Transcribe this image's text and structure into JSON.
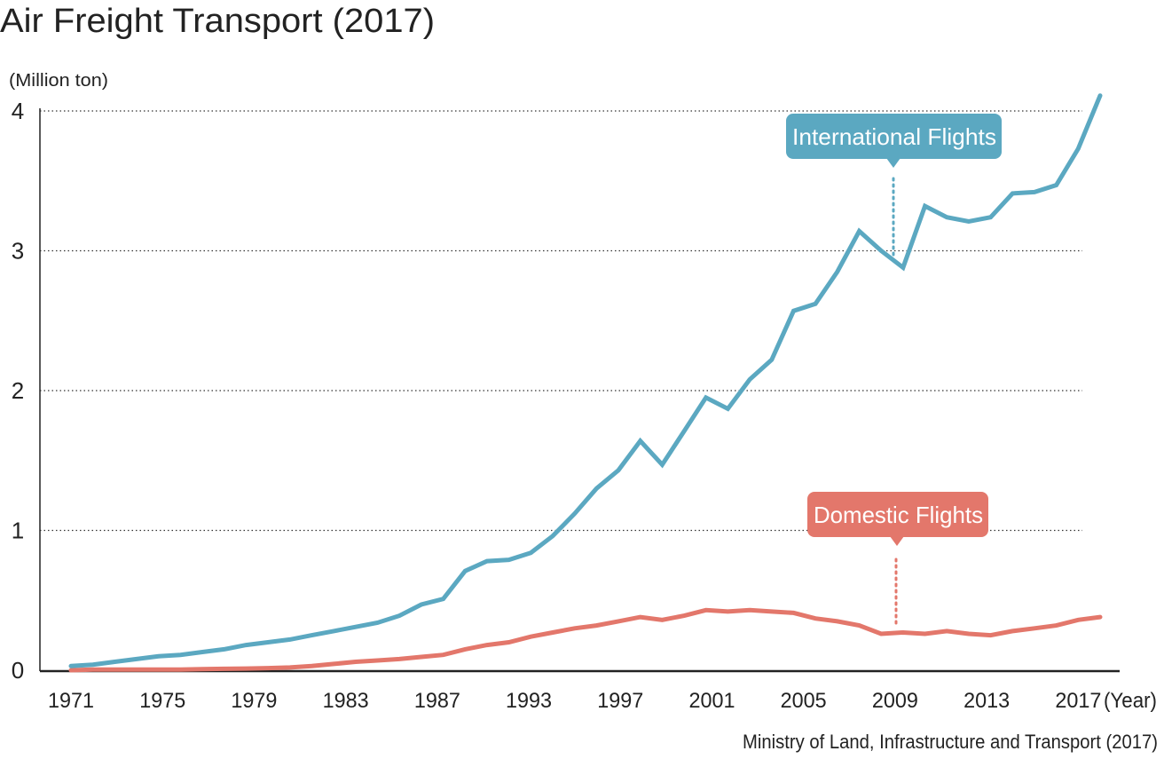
{
  "chart_data": {
    "type": "line",
    "title": "Air Freight Transport (2017)",
    "ylabel": "(Million ton)",
    "xlabel": "(Year)",
    "source": "Ministry of Land, Infrastructure and Transport (2017)",
    "ylim": [
      0,
      4
    ],
    "yticks": [
      "0",
      "1",
      "2",
      "3",
      "4"
    ],
    "xtick_labels": [
      "1971",
      "1975",
      "1979",
      "1983",
      "1987",
      "1993",
      "1997",
      "2001",
      "2005",
      "2009",
      "2013",
      "2017"
    ],
    "grid": "horizontal dotted",
    "series": [
      {
        "name": "International Flights",
        "color": "#5ba8c1",
        "values": [
          0.03,
          0.04,
          0.06,
          0.08,
          0.1,
          0.11,
          0.13,
          0.15,
          0.18,
          0.2,
          0.22,
          0.25,
          0.28,
          0.31,
          0.34,
          0.39,
          0.47,
          0.51,
          0.71,
          0.78,
          0.79,
          0.84,
          0.96,
          1.12,
          1.3,
          1.43,
          1.64,
          1.47,
          1.71,
          1.95,
          1.87,
          2.08,
          2.22,
          2.57,
          2.62,
          2.85,
          3.14,
          3.0,
          2.88,
          3.32,
          3.24,
          3.21,
          3.24,
          3.41,
          3.42,
          3.47,
          3.73,
          4.11
        ]
      },
      {
        "name": "Domestic Flights",
        "color": "#e3776b",
        "values": [
          0.0,
          0.005,
          0.005,
          0.005,
          0.005,
          0.005,
          0.008,
          0.01,
          0.012,
          0.015,
          0.02,
          0.03,
          0.045,
          0.06,
          0.07,
          0.08,
          0.095,
          0.11,
          0.15,
          0.18,
          0.2,
          0.24,
          0.27,
          0.3,
          0.32,
          0.35,
          0.38,
          0.36,
          0.39,
          0.43,
          0.42,
          0.43,
          0.42,
          0.41,
          0.37,
          0.35,
          0.32,
          0.26,
          0.27,
          0.26,
          0.28,
          0.26,
          0.25,
          0.28,
          0.3,
          0.32,
          0.36,
          0.38
        ]
      }
    ]
  }
}
